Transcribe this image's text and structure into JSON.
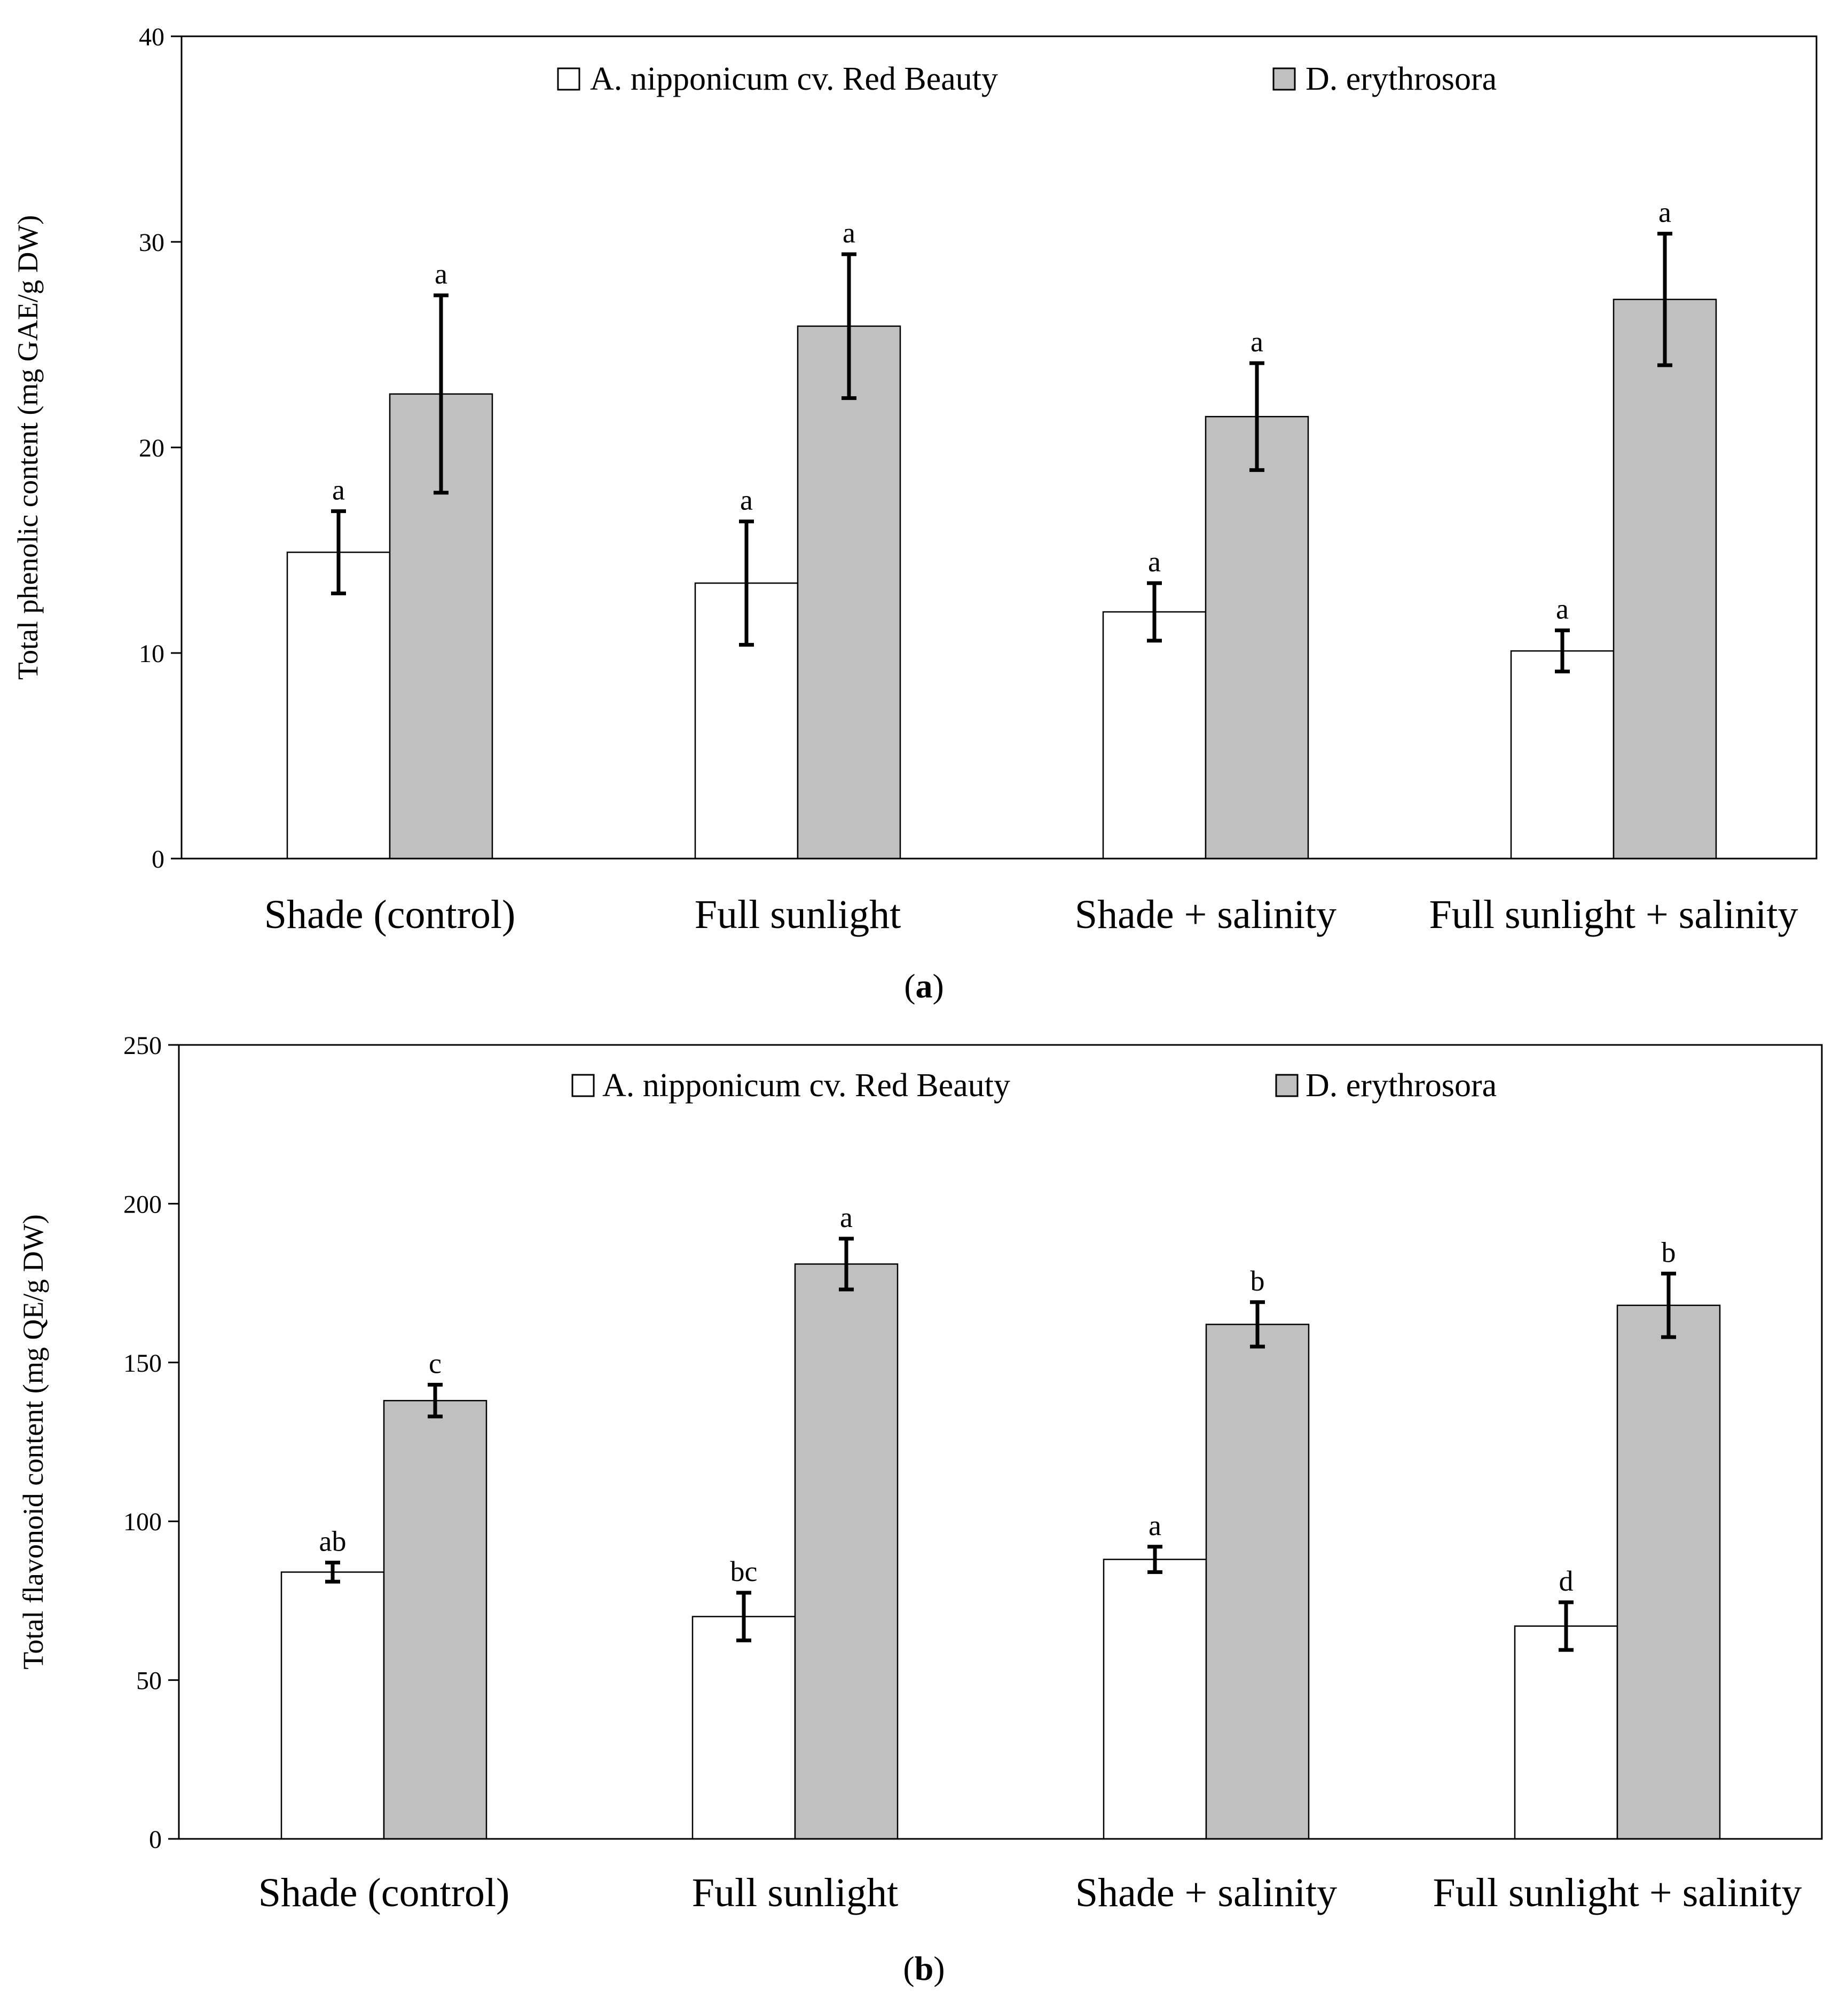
{
  "chart_data": [
    {
      "id": "a",
      "type": "bar",
      "panel_label": "a",
      "ylabel": "Total phenolic content (mg GAE/g DW)",
      "ylim": [
        0,
        40
      ],
      "yticks": [
        0,
        10,
        20,
        30,
        40
      ],
      "categories": [
        "Shade (control)",
        "Full sunlight",
        "Shade + salinity",
        "Full sunlight + salinity"
      ],
      "legend_position": "top-center",
      "series": [
        {
          "name": "A. nipponicum cv. Red Beauty",
          "color": "#ffffff",
          "values": [
            14.9,
            13.4,
            12.0,
            10.1
          ],
          "errors": [
            2.0,
            3.0,
            1.4,
            1.0
          ],
          "letters": [
            "a",
            "a",
            "a",
            "a"
          ]
        },
        {
          "name": "D. erythrosora",
          "color": "#c0c0c0",
          "values": [
            22.6,
            25.9,
            21.5,
            27.2
          ],
          "errors": [
            4.8,
            3.5,
            2.6,
            3.2
          ],
          "letters": [
            "a",
            "a",
            "a",
            "a"
          ]
        }
      ]
    },
    {
      "id": "b",
      "type": "bar",
      "panel_label": "b",
      "ylabel": "Total flavonoid content (mg QE/g DW)",
      "ylim": [
        0,
        250
      ],
      "yticks": [
        0,
        50,
        100,
        150,
        200,
        250
      ],
      "categories": [
        "Shade (control)",
        "Full sunlight",
        "Shade + salinity",
        "Full sunlight + salinity"
      ],
      "legend_position": "top-center",
      "series": [
        {
          "name": "A. nipponicum cv. Red Beauty",
          "color": "#ffffff",
          "values": [
            84,
            70,
            88,
            67
          ],
          "errors": [
            3,
            7.5,
            4,
            7.5
          ],
          "letters": [
            "ab",
            "bc",
            "a",
            "d"
          ]
        },
        {
          "name": "D. erythrosora",
          "color": "#c0c0c0",
          "values": [
            138,
            181,
            162,
            168
          ],
          "errors": [
            5,
            8,
            7,
            10
          ],
          "letters": [
            "c",
            "a",
            "b",
            "b"
          ]
        }
      ]
    }
  ]
}
